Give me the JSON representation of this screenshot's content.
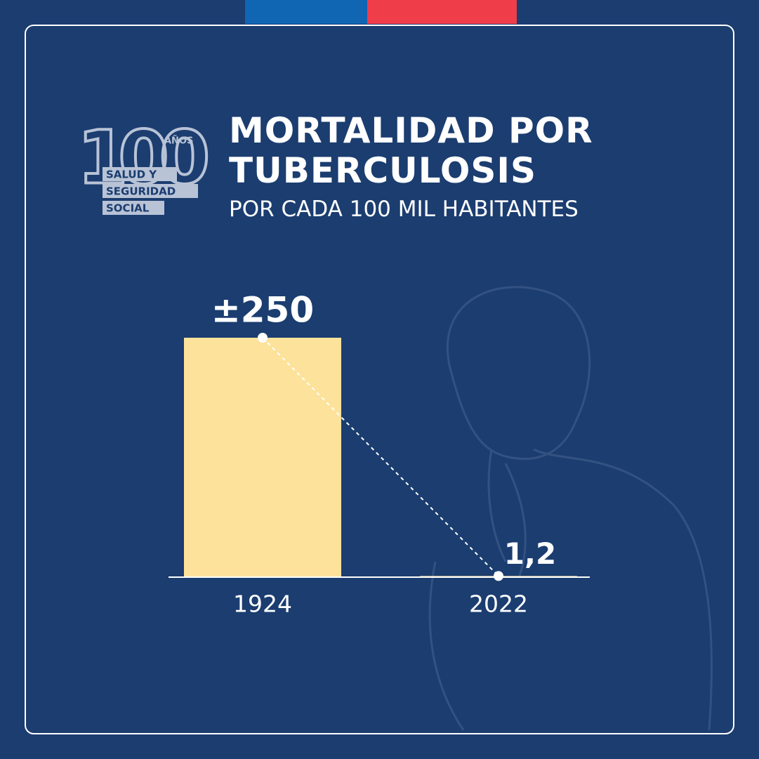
{
  "chart_data": {
    "type": "bar",
    "title": "MORTALIDAD POR TUBERCULOSIS",
    "subtitle": "POR CADA 100 MIL HABITANTES",
    "logo": {
      "number": "100",
      "unit": "AÑOS",
      "lines": [
        "SALUD Y",
        "SEGURIDAD",
        "SOCIAL"
      ]
    },
    "categories": [
      "1924",
      "2022"
    ],
    "values": [
      250,
      1.2
    ],
    "value_labels": [
      "±250",
      "1,2"
    ],
    "color": "#fde29b",
    "ylim": [
      0,
      250
    ]
  }
}
